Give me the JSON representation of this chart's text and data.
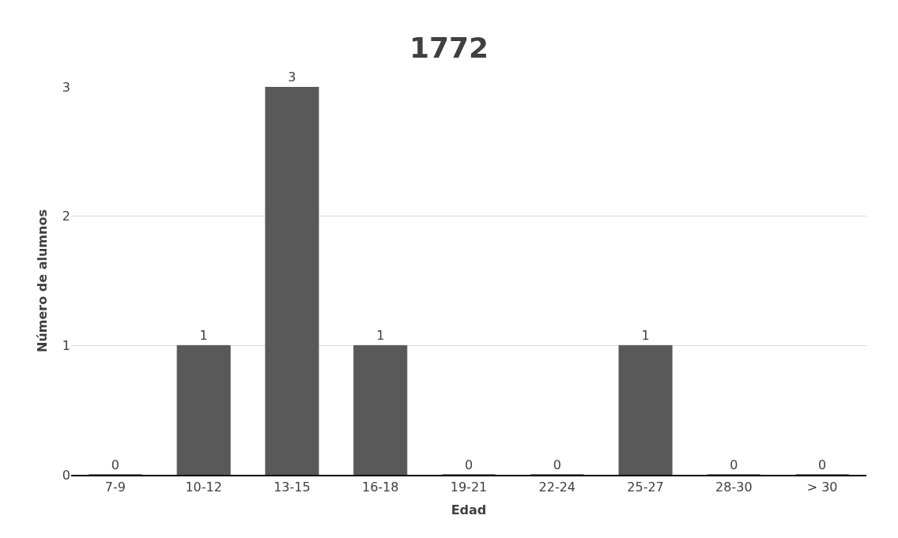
{
  "chart_data": {
    "type": "bar",
    "title": "1772",
    "xlabel": "Edad",
    "ylabel": "Número de alumnos",
    "categories": [
      "7-9",
      "10-12",
      "13-15",
      "16-18",
      "19-21",
      "22-24",
      "25-27",
      "28-30",
      "> 30"
    ],
    "values": [
      0,
      1,
      3,
      1,
      0,
      0,
      1,
      0,
      0
    ],
    "color": "#595959",
    "ylim": [
      0,
      3
    ],
    "yticks": [
      0,
      1,
      2,
      3
    ],
    "grid": "y",
    "data_labels": true
  }
}
